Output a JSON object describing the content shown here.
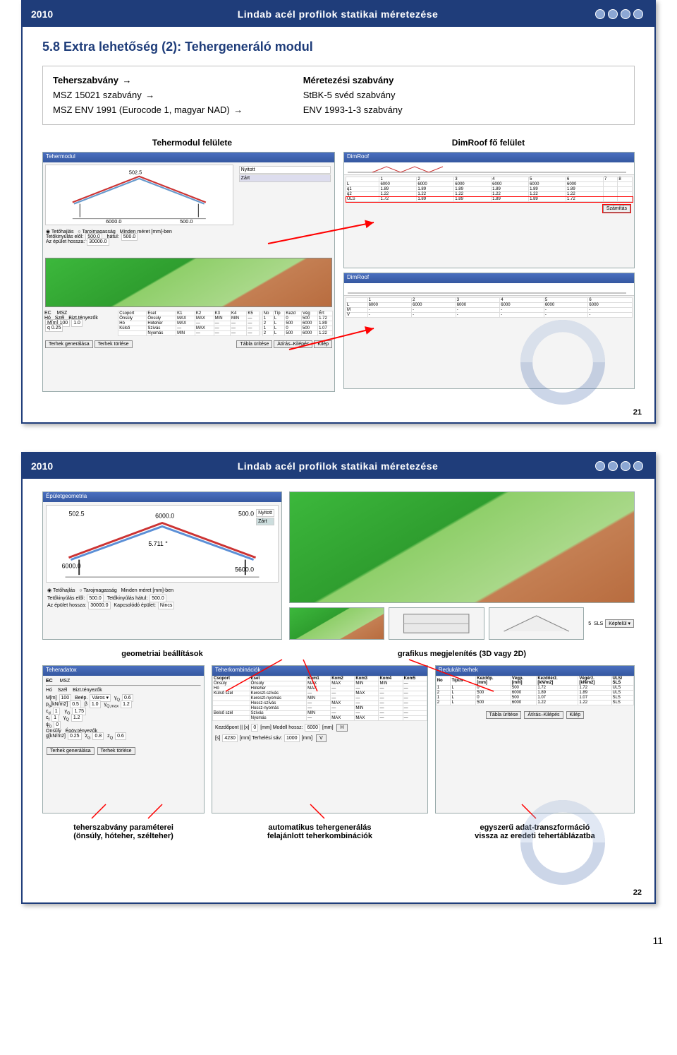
{
  "header": {
    "year": "2010",
    "title": "Lindab acél profilok statikai méretezése"
  },
  "slide1": {
    "section_title": "5.8  Extra lehetőség (2): Tehergeneráló modul",
    "std_left_head": "Teherszabvány",
    "std_left_1": "MSZ 15021 szabvány",
    "std_left_2": "MSZ ENV 1991 (Eurocode 1, magyar NAD)",
    "std_right_head": "Méretezési szabvány",
    "std_right_1": "StBK-5 svéd szabvány",
    "std_right_2": "ENV 1993-1-3 szabvány",
    "cap_left": "Tehermodul felülete",
    "cap_right": "DimRoof fő felület",
    "slide_num": "21"
  },
  "slide2": {
    "cap_geom": "geometriai beállítások",
    "cap_gfx": "grafikus megjelenítés (3D vagy 2D)",
    "cap_std": "teherszabvány paraméterei\n(önsúly, hóteher, szélteher)",
    "cap_auto": "automatikus tehergenerálás\nfelajánlott teherkombinációk",
    "cap_trans": "egyszerű adat-transzformáció\nvissza az eredeti tehertáblázatba",
    "slide_num": "22",
    "geom_labels": {
      "a": "502.5",
      "b": "6000.0",
      "c": "500.0",
      "d": "5.711",
      "e": "6000.0",
      "f": "5600.0",
      "t1": "Tetőhajlás",
      "t2": "Tarojmagasság",
      "t3": "Minden méret [mm]-ben",
      "l1": "Tetőkinyúlás elől:",
      "v1": "500.0",
      "l2": "Tetőkinyúlás hátul:",
      "v2": "500.0",
      "l3": "Az épület hossza:",
      "v3": "30000.0",
      "l4": "Kapcsolódó épület:",
      "v4": "Nincs",
      "ny": "Nyitott",
      "za": "Zárt"
    },
    "std_panel": {
      "ec": "EC",
      "msz": "MSZ",
      "ho": "Hó",
      "szel": "Szél",
      "bt": "Bizt.tényezők",
      "gen": "Terhek generálása",
      "del": "Terhek törlése"
    },
    "combo": {
      "title": "Teherkombinációk",
      "cols": [
        "Csoport",
        "Eset",
        "Kom1",
        "Kom2",
        "Kom3",
        "Kom4",
        "Kom5"
      ],
      "rows": [
        [
          "Önsúly",
          "Önsúly",
          "MAX",
          "MAX",
          "MIN",
          "MIN",
          "—"
        ],
        [
          "Hó",
          "Hóteher",
          "MAX",
          "—",
          "—",
          "—",
          "—"
        ],
        [
          "Külső szél",
          "Kereszt-szívás",
          "—",
          "—",
          "MAX",
          "—",
          "—"
        ],
        [
          "",
          "Kereszt-nyomás",
          "MIN",
          "—",
          "—",
          "—",
          "—"
        ],
        [
          "",
          "Hossz-szívás",
          "—",
          "MAX",
          "—",
          "—",
          "—"
        ],
        [
          "",
          "Hossz-nyomás",
          "—",
          "—",
          "MIN",
          "—",
          "—"
        ],
        [
          "Belső szél",
          "Szívás",
          "MIN",
          "—",
          "—",
          "—",
          "—"
        ],
        [
          "",
          "Nyomás",
          "—",
          "MAX",
          "MAX",
          "—",
          "—"
        ]
      ],
      "k1": "Kezdőpont ||",
      "k2": "[x]",
      "k3": "0",
      "k4": "[mm] Modell hossz:",
      "k5": "6000",
      "k6": "[mm]",
      "h": "H",
      "v": "V",
      "t1": "[s]",
      "t2": "4230",
      "t3": "[mm] Terhelési sáv:",
      "t4": "1000",
      "t5": "[mm]"
    },
    "loads": {
      "title": "Redukált terhek",
      "cols": [
        "No",
        "Típus",
        "Kezdőp.\n[mm]",
        "Végp.\n[mm]",
        "Kezdőérž.\n[kN/m2]",
        "Végérž.\n[kN/m2]",
        "ULS/\nSLS"
      ],
      "rows": [
        [
          "1",
          "L",
          "0",
          "500",
          "1.72",
          "1.72",
          "ULS"
        ],
        [
          "2",
          "L",
          "500",
          "6000",
          "1.89",
          "1.89",
          "ULS"
        ],
        [
          "1",
          "L",
          "0",
          "500",
          "1.07",
          "1.07",
          "SLS"
        ],
        [
          "2",
          "L",
          "500",
          "6000",
          "1.22",
          "1.22",
          "SLS"
        ]
      ],
      "b1": "Tábla ürítése",
      "b2": "Átírás–Kilépés",
      "b3": "Kilép"
    }
  },
  "page_num": "11"
}
